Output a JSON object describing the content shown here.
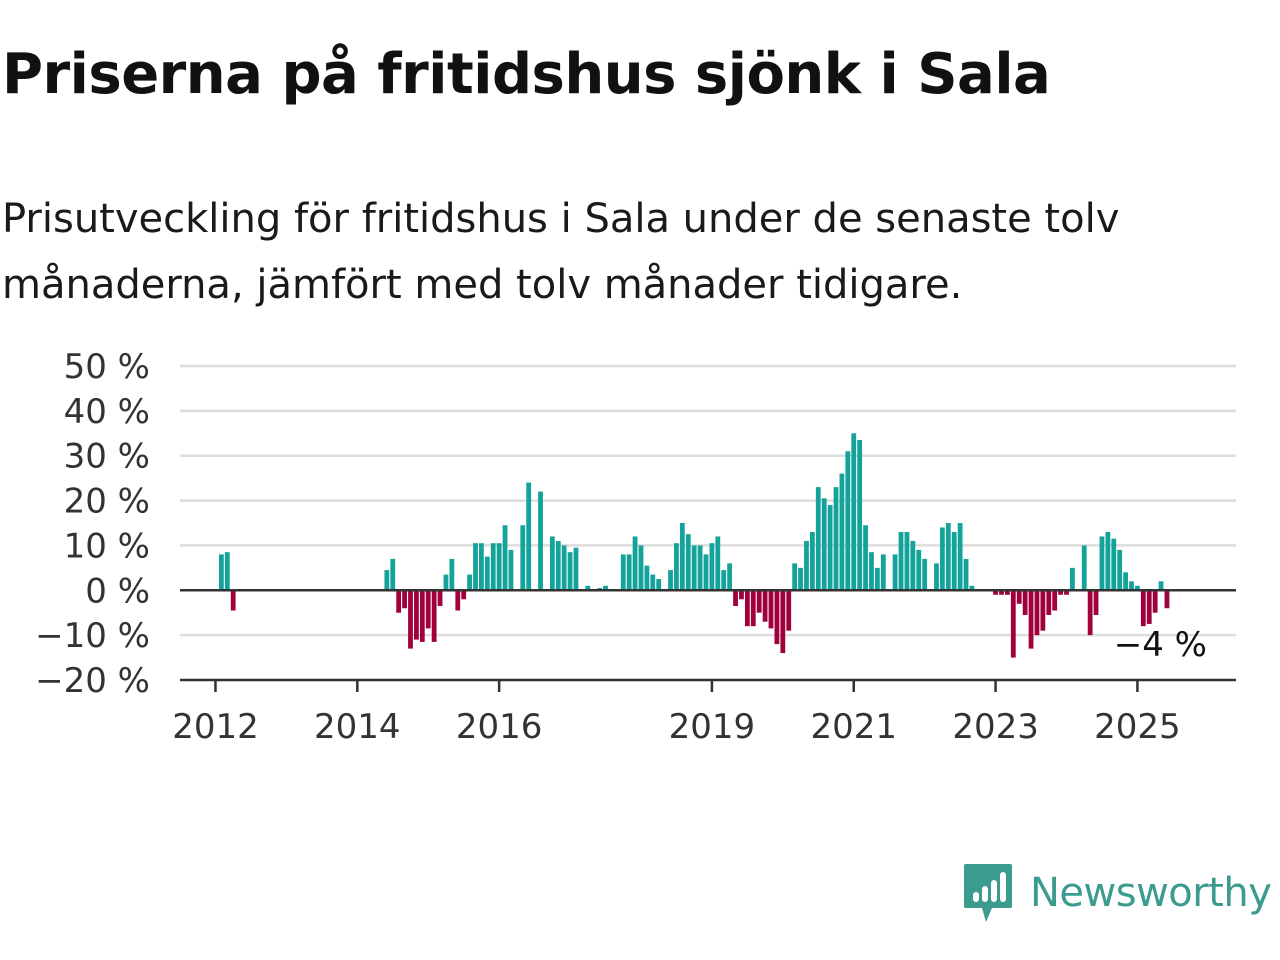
{
  "title": "Priserna på fritidshus sjönk i Sala",
  "subtitle": "Prisutveckling för fritidshus i Sala under de senaste tolv månaderna, jämfört med tolv månader tidigare.",
  "brand": {
    "name": "Newsworthy",
    "icon": "newsworthy-logo-icon",
    "color": "#3a9b8e"
  },
  "colors": {
    "positive": "#14a39a",
    "negative": "#a0003c",
    "grid": "#dddddd",
    "axis": "#333333"
  },
  "chart_data": {
    "type": "bar",
    "x_unit": "month",
    "ylim": [
      -20,
      50
    ],
    "yticks": [
      50,
      40,
      30,
      20,
      10,
      0,
      -10,
      -20
    ],
    "ytick_labels": [
      "50 %",
      "40 %",
      "30 %",
      "20 %",
      "10 %",
      "0 %",
      "−10 %",
      "−20 %"
    ],
    "xticks": [
      "2012",
      "2014",
      "2016",
      "2019",
      "2021",
      "2023",
      "2025"
    ],
    "grid": true,
    "end_label": "−4 %",
    "series": [
      {
        "values": [
          {
            "x": "2012-02",
            "y": 8
          },
          {
            "x": "2012-03",
            "y": 8.5
          },
          {
            "x": "2012-04",
            "y": -4.5
          },
          {
            "x": "2014-06",
            "y": 4.5
          },
          {
            "x": "2014-07",
            "y": 7
          },
          {
            "x": "2014-08",
            "y": -5
          },
          {
            "x": "2014-09",
            "y": -4
          },
          {
            "x": "2014-10",
            "y": -13
          },
          {
            "x": "2014-11",
            "y": -11
          },
          {
            "x": "2014-12",
            "y": -11.5
          },
          {
            "x": "2015-01",
            "y": -8.5
          },
          {
            "x": "2015-02",
            "y": -11.5
          },
          {
            "x": "2015-03",
            "y": -3.5
          },
          {
            "x": "2015-04",
            "y": 3.5
          },
          {
            "x": "2015-05",
            "y": 7
          },
          {
            "x": "2015-06",
            "y": -4.5
          },
          {
            "x": "2015-07",
            "y": -2
          },
          {
            "x": "2015-08",
            "y": 3.5
          },
          {
            "x": "2015-09",
            "y": 10.5
          },
          {
            "x": "2015-10",
            "y": 10.5
          },
          {
            "x": "2015-11",
            "y": 7.5
          },
          {
            "x": "2015-12",
            "y": 10.5
          },
          {
            "x": "2016-01",
            "y": 10.5
          },
          {
            "x": "2016-02",
            "y": 14.5
          },
          {
            "x": "2016-03",
            "y": 9
          },
          {
            "x": "2016-05",
            "y": 14.5
          },
          {
            "x": "2016-06",
            "y": 24
          },
          {
            "x": "2016-08",
            "y": 22
          },
          {
            "x": "2016-10",
            "y": 12
          },
          {
            "x": "2016-11",
            "y": 11
          },
          {
            "x": "2016-12",
            "y": 10
          },
          {
            "x": "2017-01",
            "y": 8.5
          },
          {
            "x": "2017-02",
            "y": 9.5
          },
          {
            "x": "2017-04",
            "y": 1
          },
          {
            "x": "2017-06",
            "y": 0.5
          },
          {
            "x": "2017-07",
            "y": 1
          },
          {
            "x": "2017-10",
            "y": 8
          },
          {
            "x": "2017-11",
            "y": 8
          },
          {
            "x": "2017-12",
            "y": 12
          },
          {
            "x": "2018-01",
            "y": 10
          },
          {
            "x": "2018-02",
            "y": 5.5
          },
          {
            "x": "2018-03",
            "y": 3.5
          },
          {
            "x": "2018-04",
            "y": 2.5
          },
          {
            "x": "2018-06",
            "y": 4.5
          },
          {
            "x": "2018-07",
            "y": 10.5
          },
          {
            "x": "2018-08",
            "y": 15
          },
          {
            "x": "2018-09",
            "y": 12.5
          },
          {
            "x": "2018-10",
            "y": 10
          },
          {
            "x": "2018-11",
            "y": 10
          },
          {
            "x": "2018-12",
            "y": 8
          },
          {
            "x": "2019-01",
            "y": 10.5
          },
          {
            "x": "2019-02",
            "y": 12
          },
          {
            "x": "2019-03",
            "y": 4.5
          },
          {
            "x": "2019-04",
            "y": 6
          },
          {
            "x": "2019-05",
            "y": -3.5
          },
          {
            "x": "2019-06",
            "y": -2
          },
          {
            "x": "2019-07",
            "y": -8
          },
          {
            "x": "2019-08",
            "y": -8
          },
          {
            "x": "2019-09",
            "y": -5
          },
          {
            "x": "2019-10",
            "y": -7
          },
          {
            "x": "2019-11",
            "y": -8.5
          },
          {
            "x": "2019-12",
            "y": -12
          },
          {
            "x": "2020-01",
            "y": -14
          },
          {
            "x": "2020-02",
            "y": -9
          },
          {
            "x": "2020-03",
            "y": 6
          },
          {
            "x": "2020-04",
            "y": 5
          },
          {
            "x": "2020-05",
            "y": 11
          },
          {
            "x": "2020-06",
            "y": 13
          },
          {
            "x": "2020-07",
            "y": 23
          },
          {
            "x": "2020-08",
            "y": 20.5
          },
          {
            "x": "2020-09",
            "y": 19
          },
          {
            "x": "2020-10",
            "y": 23
          },
          {
            "x": "2020-11",
            "y": 26
          },
          {
            "x": "2020-12",
            "y": 31
          },
          {
            "x": "2021-01",
            "y": 35
          },
          {
            "x": "2021-02",
            "y": 33.5
          },
          {
            "x": "2021-03",
            "y": 14.5
          },
          {
            "x": "2021-04",
            "y": 8.5
          },
          {
            "x": "2021-05",
            "y": 5
          },
          {
            "x": "2021-06",
            "y": 8
          },
          {
            "x": "2021-08",
            "y": 8
          },
          {
            "x": "2021-09",
            "y": 13
          },
          {
            "x": "2021-10",
            "y": 13
          },
          {
            "x": "2021-11",
            "y": 11
          },
          {
            "x": "2021-12",
            "y": 9
          },
          {
            "x": "2022-01",
            "y": 7
          },
          {
            "x": "2022-03",
            "y": 6
          },
          {
            "x": "2022-04",
            "y": 14
          },
          {
            "x": "2022-05",
            "y": 15
          },
          {
            "x": "2022-06",
            "y": 13
          },
          {
            "x": "2022-07",
            "y": 15
          },
          {
            "x": "2022-08",
            "y": 7
          },
          {
            "x": "2022-09",
            "y": 1
          },
          {
            "x": "2023-01",
            "y": -1
          },
          {
            "x": "2023-02",
            "y": -1
          },
          {
            "x": "2023-03",
            "y": -1
          },
          {
            "x": "2023-04",
            "y": -15
          },
          {
            "x": "2023-05",
            "y": -3
          },
          {
            "x": "2023-06",
            "y": -5.5
          },
          {
            "x": "2023-07",
            "y": -13
          },
          {
            "x": "2023-08",
            "y": -10
          },
          {
            "x": "2023-09",
            "y": -9
          },
          {
            "x": "2023-10",
            "y": -5.5
          },
          {
            "x": "2023-11",
            "y": -4.5
          },
          {
            "x": "2023-12",
            "y": -1
          },
          {
            "x": "2024-01",
            "y": -1
          },
          {
            "x": "2024-02",
            "y": 5
          },
          {
            "x": "2024-04",
            "y": 10
          },
          {
            "x": "2024-05",
            "y": -10
          },
          {
            "x": "2024-06",
            "y": -5.5
          },
          {
            "x": "2024-07",
            "y": 12
          },
          {
            "x": "2024-08",
            "y": 13
          },
          {
            "x": "2024-09",
            "y": 11.5
          },
          {
            "x": "2024-10",
            "y": 9
          },
          {
            "x": "2024-11",
            "y": 4
          },
          {
            "x": "2024-12",
            "y": 2
          },
          {
            "x": "2025-01",
            "y": 1
          },
          {
            "x": "2025-02",
            "y": -8
          },
          {
            "x": "2025-03",
            "y": -7.5
          },
          {
            "x": "2025-04",
            "y": -5
          },
          {
            "x": "2025-05",
            "y": 2
          },
          {
            "x": "2025-06",
            "y": -4
          }
        ]
      }
    ]
  }
}
